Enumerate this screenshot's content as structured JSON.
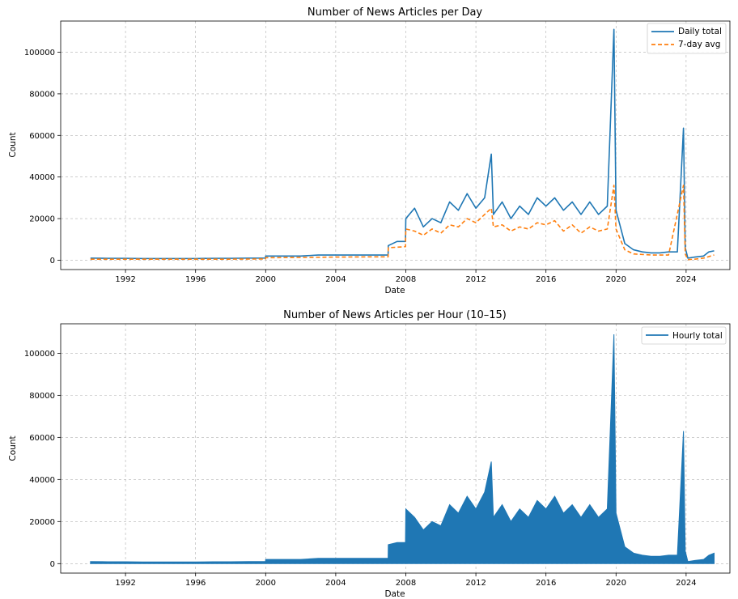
{
  "chart_data": [
    {
      "type": "line",
      "title": "Number of News Articles per Day",
      "xlabel": "Date",
      "ylabel": "Count",
      "x_ticks": [
        "1992",
        "1996",
        "2000",
        "2004",
        "2008",
        "2012",
        "2016",
        "2020",
        "2024"
      ],
      "y_ticks": [
        "0",
        "20000",
        "40000",
        "60000",
        "80000",
        "100000"
      ],
      "xlim": [
        1988.3,
        2026.5
      ],
      "ylim": [
        -4500,
        115000
      ],
      "grid": true,
      "legend_position": "top-right",
      "series": [
        {
          "name": "Daily total",
          "color": "#1f77b4",
          "style": "solid",
          "x": [
            1990.0,
            1991.0,
            1992.0,
            1993.0,
            1994.0,
            1995.0,
            1996.0,
            1997.0,
            1998.0,
            1999.0,
            1999.99,
            2000.0,
            2001.0,
            2002.0,
            2003.0,
            2004.0,
            2005.0,
            2006.0,
            2006.99,
            2007.0,
            2007.5,
            2007.98,
            2008.0,
            2008.5,
            2009.0,
            2009.5,
            2010.0,
            2010.5,
            2011.0,
            2011.5,
            2012.0,
            2012.5,
            2012.88,
            2013.0,
            2013.5,
            2014.0,
            2014.5,
            2015.0,
            2015.5,
            2016.0,
            2016.5,
            2017.0,
            2017.5,
            2018.0,
            2018.5,
            2019.0,
            2019.5,
            2019.88,
            2020.0,
            2020.5,
            2021.0,
            2021.5,
            2022.0,
            2022.5,
            2023.0,
            2023.5,
            2023.85,
            2023.95,
            2024.1,
            2024.5,
            2025.0,
            2025.3,
            2025.6
          ],
          "y": [
            1000,
            900,
            900,
            800,
            800,
            800,
            800,
            900,
            900,
            1000,
            1000,
            2000,
            2000,
            2000,
            2500,
            2500,
            2500,
            2500,
            2500,
            7000,
            9000,
            9000,
            20000,
            25000,
            16000,
            20000,
            18000,
            28000,
            24000,
            32000,
            25000,
            30000,
            51000,
            22000,
            28000,
            20000,
            26000,
            22000,
            30000,
            26000,
            30000,
            24000,
            28000,
            22000,
            28000,
            22000,
            26000,
            111000,
            24000,
            8000,
            5000,
            4000,
            3500,
            3500,
            4000,
            4000,
            63500,
            6000,
            1000,
            1500,
            2000,
            4000,
            4500
          ]
        },
        {
          "name": "7-day avg",
          "color": "#ff7f0e",
          "style": "dashed",
          "x": [
            1990.0,
            1992.0,
            1994.0,
            1996.0,
            1998.0,
            1999.99,
            2000.0,
            2002.0,
            2004.0,
            2006.0,
            2006.99,
            2007.0,
            2007.98,
            2008.0,
            2008.5,
            2009.0,
            2009.5,
            2010.0,
            2010.5,
            2011.0,
            2011.5,
            2012.0,
            2012.5,
            2012.88,
            2013.0,
            2013.5,
            2014.0,
            2014.5,
            2015.0,
            2015.5,
            2016.0,
            2016.5,
            2017.0,
            2017.5,
            2018.0,
            2018.5,
            2019.0,
            2019.5,
            2019.88,
            2020.0,
            2020.5,
            2021.0,
            2022.0,
            2023.0,
            2023.85,
            2023.95,
            2024.1,
            2024.5,
            2025.0,
            2025.6
          ],
          "y": [
            500,
            500,
            500,
            500,
            500,
            600,
            1200,
            1300,
            1500,
            1600,
            1600,
            6000,
            6500,
            15000,
            14000,
            12000,
            15000,
            13000,
            17000,
            16000,
            20000,
            18000,
            22000,
            25000,
            16000,
            17000,
            14000,
            16000,
            15000,
            18000,
            17000,
            19000,
            14000,
            17000,
            13000,
            16000,
            14000,
            15000,
            36000,
            15000,
            5000,
            3000,
            2500,
            2500,
            36000,
            3000,
            300,
            500,
            1000,
            2500
          ]
        }
      ]
    },
    {
      "type": "area",
      "title": "Number of News Articles per Hour (10–15)",
      "xlabel": "Date",
      "ylabel": "Count",
      "x_ticks": [
        "1992",
        "1996",
        "2000",
        "2004",
        "2008",
        "2012",
        "2016",
        "2020",
        "2024"
      ],
      "y_ticks": [
        "0",
        "20000",
        "40000",
        "60000",
        "80000",
        "100000"
      ],
      "xlim": [
        1988.3,
        2026.5
      ],
      "ylim": [
        -4500,
        114000
      ],
      "grid": true,
      "legend_position": "top-right",
      "series": [
        {
          "name": "Hourly total",
          "color": "#1f77b4",
          "x": [
            1990.0,
            1991.0,
            1992.0,
            1993.0,
            1994.0,
            1995.0,
            1996.0,
            1997.0,
            1998.0,
            1999.0,
            1999.99,
            2000.0,
            2001.0,
            2002.0,
            2003.0,
            2004.0,
            2005.0,
            2006.0,
            2006.99,
            2007.0,
            2007.5,
            2007.98,
            2008.0,
            2008.5,
            2009.0,
            2009.5,
            2010.0,
            2010.5,
            2011.0,
            2011.5,
            2012.0,
            2012.5,
            2012.88,
            2013.0,
            2013.5,
            2014.0,
            2014.5,
            2015.0,
            2015.5,
            2016.0,
            2016.5,
            2017.0,
            2017.5,
            2018.0,
            2018.5,
            2019.0,
            2019.5,
            2019.88,
            2020.0,
            2020.5,
            2021.0,
            2021.5,
            2022.0,
            2022.5,
            2023.0,
            2023.5,
            2023.85,
            2023.95,
            2024.1,
            2024.5,
            2025.0,
            2025.3,
            2025.6
          ],
          "y": [
            1000,
            900,
            900,
            800,
            800,
            800,
            800,
            900,
            900,
            1000,
            1000,
            2000,
            2000,
            2000,
            2500,
            2500,
            2500,
            2500,
            2500,
            9000,
            10000,
            10000,
            26000,
            22000,
            16000,
            20000,
            18000,
            28000,
            24000,
            32000,
            26000,
            34000,
            48500,
            22000,
            28000,
            20000,
            26000,
            22000,
            30000,
            26000,
            32000,
            24000,
            28000,
            22000,
            28000,
            22000,
            26000,
            109000,
            24000,
            8000,
            5000,
            4000,
            3500,
            3500,
            4000,
            4000,
            63000,
            6000,
            1000,
            1500,
            2000,
            4000,
            5000
          ]
        }
      ]
    }
  ]
}
